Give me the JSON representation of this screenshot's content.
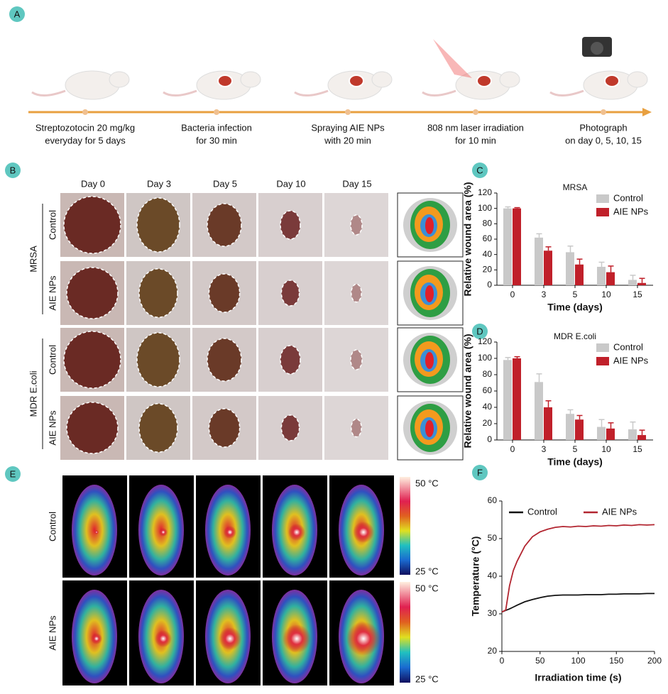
{
  "panels": [
    "A",
    "B",
    "C",
    "D",
    "E",
    "F"
  ],
  "timeline": {
    "steps": [
      [
        "Streptozotocin 20 mg/kg",
        "everyday for 5 days"
      ],
      [
        "Bacteria infection",
        "for 30 min"
      ],
      [
        "Spraying AIE NPs",
        "with 20 min"
      ],
      [
        "808 nm laser irradiation",
        "for 10 min"
      ],
      [
        "Photograph",
        "on day 0, 5, 10, 15"
      ]
    ]
  },
  "wound_grid": {
    "days": [
      "Day 0",
      "Day 3",
      "Day 5",
      "Day 10",
      "Day 15"
    ],
    "groups": [
      {
        "name": "MRSA",
        "rows": [
          "Control",
          "AIE NPs"
        ]
      },
      {
        "name": "MDR E.coli",
        "rows": [
          "Control",
          "AIE NPs"
        ]
      }
    ]
  },
  "thermal": {
    "rows": [
      "Control",
      "AIE NPs"
    ],
    "scale_max": "50 °C",
    "scale_min": "25 °C"
  },
  "chart_data": [
    {
      "type": "bar",
      "title": "MRSA",
      "categories": [
        "0",
        "3",
        "5",
        "10",
        "15"
      ],
      "series": [
        {
          "name": "Control",
          "color": "#c9c9c9",
          "values": [
            100,
            62,
            43,
            24,
            7
          ],
          "errors": [
            2,
            5,
            8,
            6,
            6
          ]
        },
        {
          "name": "AIE NPs",
          "color": "#c0202a",
          "values": [
            100,
            45,
            27,
            17,
            3
          ],
          "errors": [
            1,
            5,
            7,
            8,
            6
          ]
        }
      ],
      "ylim": [
        0,
        120
      ],
      "yticks": [
        0,
        20,
        40,
        60,
        80,
        100,
        120
      ],
      "x_label": "Time (days)",
      "y_label": "Relative wound area (%)",
      "legend": "upper right"
    },
    {
      "type": "bar",
      "title": "MDR E.coli",
      "categories": [
        "0",
        "3",
        "5",
        "10",
        "15"
      ],
      "series": [
        {
          "name": "Control",
          "color": "#c9c9c9",
          "values": [
            98,
            71,
            32,
            16,
            13
          ],
          "errors": [
            3,
            10,
            5,
            9,
            9
          ]
        },
        {
          "name": "AIE NPs",
          "color": "#c0202a",
          "values": [
            100,
            40,
            25,
            14,
            6
          ],
          "errors": [
            2,
            8,
            5,
            7,
            6
          ]
        }
      ],
      "ylim": [
        0,
        120
      ],
      "yticks": [
        0,
        20,
        40,
        60,
        80,
        100,
        120
      ],
      "x_label": "Time (days)",
      "y_label": "Relative wound area (%)",
      "legend": "upper right"
    },
    {
      "type": "line",
      "x": [
        0,
        5,
        10,
        15,
        20,
        30,
        40,
        50,
        60,
        70,
        80,
        90,
        100,
        110,
        120,
        130,
        140,
        150,
        160,
        170,
        180,
        190,
        200
      ],
      "series": [
        {
          "name": "Control",
          "color": "#111111",
          "values": [
            30.5,
            30.9,
            31.3,
            31.8,
            32.3,
            33.2,
            33.8,
            34.3,
            34.7,
            34.9,
            35.0,
            35.0,
            35.0,
            35.1,
            35.1,
            35.1,
            35.2,
            35.2,
            35.3,
            35.3,
            35.3,
            35.4,
            35.4
          ]
        },
        {
          "name": "AIE NPs",
          "color": "#b22530",
          "values": [
            30.5,
            31.0,
            37.5,
            41.5,
            44.0,
            48.0,
            50.5,
            51.8,
            52.5,
            53.0,
            53.2,
            53.1,
            53.3,
            53.2,
            53.4,
            53.3,
            53.5,
            53.4,
            53.6,
            53.5,
            53.7,
            53.6,
            53.7
          ]
        }
      ],
      "xlim": [
        0,
        200
      ],
      "xticks": [
        0,
        50,
        100,
        150,
        200
      ],
      "ylim": [
        20,
        60
      ],
      "yticks": [
        20,
        30,
        40,
        50,
        60
      ],
      "x_label": "Irradiation time (s)",
      "y_label": "Temperature (°C)",
      "legend": "top"
    }
  ]
}
